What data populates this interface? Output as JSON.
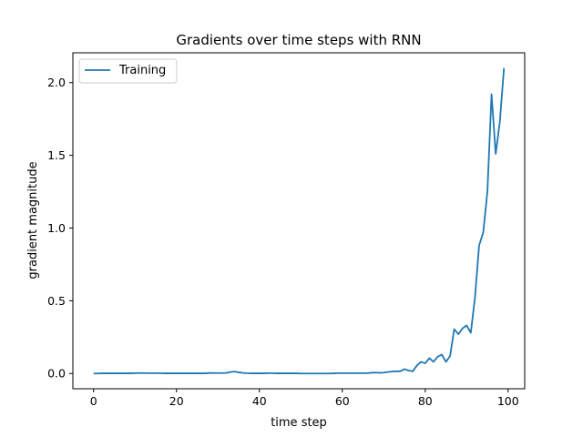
{
  "chart_data": {
    "type": "line",
    "title": "Gradients over time steps with RNN",
    "xlabel": "time step",
    "ylabel": "gradient magnitude",
    "xlim": [
      -5,
      104
    ],
    "ylim": [
      -0.105,
      2.205
    ],
    "xticks": [
      0,
      20,
      40,
      60,
      80,
      100
    ],
    "yticks": [
      0.0,
      0.5,
      1.0,
      1.5,
      2.0
    ],
    "xtick_labels": [
      "0",
      "20",
      "40",
      "60",
      "80",
      "100"
    ],
    "ytick_labels": [
      "0.0",
      "0.5",
      "1.0",
      "1.5",
      "2.0"
    ],
    "grid": false,
    "legend_position": "top-left",
    "series": [
      {
        "name": "Training",
        "color": "#1f77b4",
        "x": [
          0,
          1,
          2,
          3,
          4,
          5,
          6,
          7,
          8,
          9,
          10,
          11,
          12,
          13,
          14,
          15,
          16,
          17,
          18,
          19,
          20,
          21,
          22,
          23,
          24,
          25,
          26,
          27,
          28,
          29,
          30,
          31,
          32,
          33,
          34,
          35,
          36,
          37,
          38,
          39,
          40,
          41,
          42,
          43,
          44,
          45,
          46,
          47,
          48,
          49,
          50,
          51,
          52,
          53,
          54,
          55,
          56,
          57,
          58,
          59,
          60,
          61,
          62,
          63,
          64,
          65,
          66,
          67,
          68,
          69,
          70,
          71,
          72,
          73,
          74,
          75,
          76,
          77,
          78,
          79,
          80,
          81,
          82,
          83,
          84,
          85,
          86,
          87,
          88,
          89,
          90,
          91,
          92,
          93,
          94,
          95,
          96,
          97,
          98,
          99
        ],
        "y": [
          0.0,
          0.0,
          0.001,
          0.001,
          0.001,
          0.001,
          0.001,
          0.001,
          0.001,
          0.001,
          0.002,
          0.003,
          0.003,
          0.002,
          0.002,
          0.002,
          0.002,
          0.001,
          0.001,
          0.001,
          0.001,
          0.001,
          0.001,
          0.001,
          0.001,
          0.001,
          0.001,
          0.001,
          0.004,
          0.003,
          0.003,
          0.003,
          0.004,
          0.01,
          0.013,
          0.008,
          0.004,
          0.002,
          0.001,
          0.001,
          0.001,
          0.001,
          0.002,
          0.002,
          0.001,
          0.001,
          0.001,
          0.001,
          0.001,
          0.001,
          0.0,
          0.0,
          0.0,
          0.0,
          0.0,
          0.0,
          0.0,
          0.0,
          0.001,
          0.002,
          0.002,
          0.002,
          0.002,
          0.002,
          0.002,
          0.002,
          0.002,
          0.005,
          0.006,
          0.005,
          0.006,
          0.01,
          0.013,
          0.015,
          0.015,
          0.03,
          0.02,
          0.015,
          0.055,
          0.08,
          0.07,
          0.105,
          0.08,
          0.115,
          0.13,
          0.08,
          0.12,
          0.305,
          0.27,
          0.31,
          0.33,
          0.28,
          0.52,
          0.88,
          0.97,
          1.25,
          1.92,
          1.51,
          1.73,
          2.1
        ]
      }
    ]
  }
}
